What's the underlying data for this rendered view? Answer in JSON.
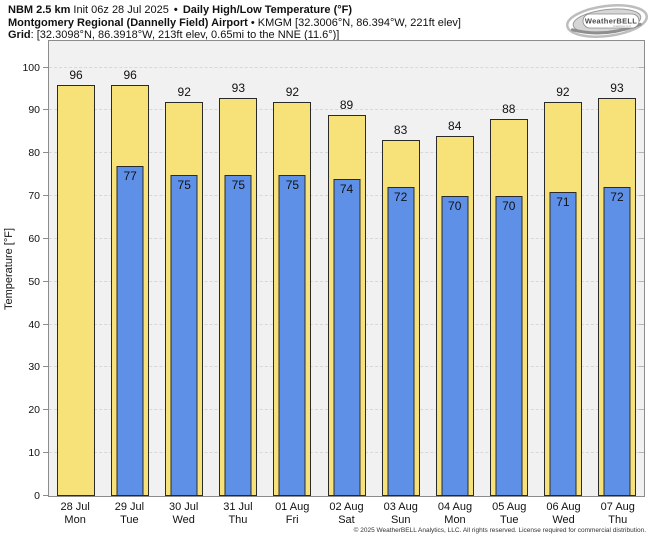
{
  "header": {
    "model": "NBM 2.5 km",
    "init": "Init 06z 28 Jul 2025",
    "bullet": "•",
    "product": "Daily High/Low Temperature (°F)",
    "station_name": "Montgomery Regional (Dannelly Field) Airport",
    "station_meta": "• KMGM [32.3006°N, 86.394°W, 221ft elev]",
    "grid_label": "Grid",
    "grid_meta": ": [32.3098°N, 86.3918°W, 213ft elev, 0.65mi to the NNE (11.6°)]"
  },
  "logo": {
    "brand": "WeatherBELL",
    "subtext": "Analytics LLC"
  },
  "chart_data": {
    "type": "bar",
    "title": "Daily High/Low Temperature (°F)",
    "ylabel": "Temperature [°F]",
    "ylim": [
      0,
      100
    ],
    "yticks": [
      0,
      10,
      20,
      30,
      40,
      50,
      60,
      70,
      80,
      90,
      100
    ],
    "grid": true,
    "legend": "none",
    "categories": [
      {
        "date": "28 Jul",
        "day": "Mon"
      },
      {
        "date": "29 Jul",
        "day": "Tue"
      },
      {
        "date": "30 Jul",
        "day": "Wed"
      },
      {
        "date": "31 Jul",
        "day": "Thu"
      },
      {
        "date": "01 Aug",
        "day": "Fri"
      },
      {
        "date": "02 Aug",
        "day": "Sat"
      },
      {
        "date": "03 Aug",
        "day": "Sun"
      },
      {
        "date": "04 Aug",
        "day": "Mon"
      },
      {
        "date": "05 Aug",
        "day": "Tue"
      },
      {
        "date": "06 Aug",
        "day": "Wed"
      },
      {
        "date": "07 Aug",
        "day": "Thu"
      }
    ],
    "series": [
      {
        "name": "High",
        "color": "#F7E27A",
        "values": [
          96,
          96,
          92,
          93,
          92,
          89,
          83,
          84,
          88,
          92,
          93
        ]
      },
      {
        "name": "Low",
        "color": "#5F90E8",
        "values": [
          null,
          77,
          75,
          75,
          75,
          74,
          72,
          70,
          70,
          71,
          72
        ]
      }
    ]
  },
  "colors": {
    "high_bar": "#F7E27A",
    "low_bar": "#5F90E8",
    "bar_border": "#2A2A2A",
    "plot_background": "#F1F1F1",
    "grid_line": "#D8D8D8",
    "plot_border": "#8C8C8C"
  },
  "footer": {
    "copyright": "© 2025 WeatherBELL Analytics, LLC. All rights reserved. License required for commercial distribution."
  }
}
